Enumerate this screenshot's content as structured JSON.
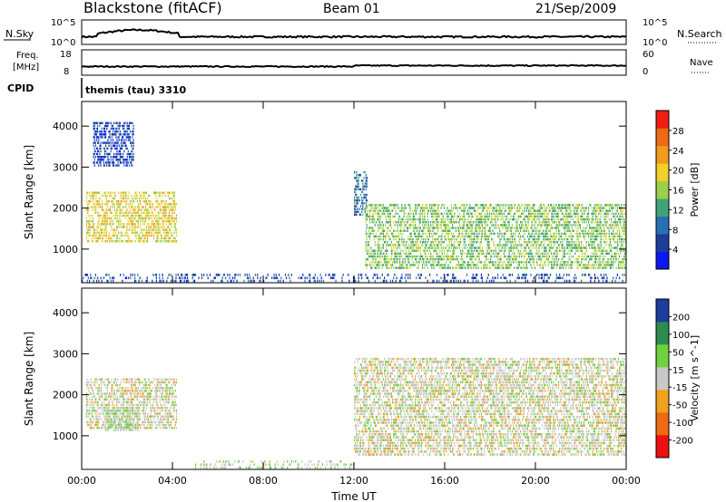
{
  "header": {
    "station": "Blackstone (fitACF)",
    "beam": "Beam 01",
    "date": "21/Sep/2009"
  },
  "top_panels": {
    "nsky": {
      "label": "N.Sky",
      "tick_hi": "10^5",
      "tick_lo": "10^0"
    },
    "nsearch": {
      "label": "N.Search",
      "tick_hi": "10^5",
      "tick_lo": "10^0"
    },
    "freq": {
      "label_1": "Freq.",
      "label_2": "[MHz]",
      "tick_hi": "18",
      "tick_lo": "8"
    },
    "nave": {
      "label": "Nave",
      "tick_hi": "60",
      "tick_lo": "0"
    },
    "cpid": {
      "label": "CPID",
      "program": "themis (tau) 3310"
    }
  },
  "colors": {
    "power": [
      "#0a19f0",
      "#1e3c9c",
      "#2a6fb3",
      "#3fa37a",
      "#9bd14a",
      "#f0d02a",
      "#f09a1e",
      "#ef6a14",
      "#ee1e14"
    ],
    "velocity": [
      "#ee1111",
      "#ef6a14",
      "#f0a21e",
      "#c8c8c8",
      "#6ed23c",
      "#2e8b4e",
      "#1e3c9c"
    ]
  },
  "chart_data": [
    {
      "type": "heatmap",
      "title": "Power",
      "ylabel": "Slant Range [km]",
      "xlabel": "",
      "ylim": [
        180,
        4600
      ],
      "x_ticks": [
        "00:00",
        "04:00",
        "08:00",
        "12:00",
        "16:00",
        "20:00",
        "00:00"
      ],
      "y_ticks": [
        "1000",
        "2000",
        "3000",
        "4000"
      ],
      "colorbar": {
        "label": "Power [dB]",
        "ticks": [
          "4",
          "8",
          "12",
          "16",
          "20",
          "24",
          "28"
        ],
        "range": [
          0,
          30
        ]
      },
      "features": [
        {
          "t_start": 0.2,
          "t_end": 4.2,
          "range_min": 1150,
          "range_max": 2400,
          "value": 18
        },
        {
          "t_start": 0.5,
          "t_end": 2.3,
          "range_min": 3000,
          "range_max": 4100,
          "value": 5
        },
        {
          "t_start": 12.0,
          "t_end": 12.6,
          "range_min": 1800,
          "range_max": 2900,
          "value": 8
        },
        {
          "t_start": 12.5,
          "t_end": 24.0,
          "range_min": 500,
          "range_max": 2100,
          "value": 14
        },
        {
          "t_start": 0.0,
          "t_end": 24.0,
          "range_min": 180,
          "range_max": 400,
          "value": 6
        }
      ]
    },
    {
      "type": "heatmap",
      "title": "Velocity",
      "ylabel": "Slant Range [km]",
      "xlabel": "Time UT",
      "ylim": [
        180,
        4600
      ],
      "x_ticks": [
        "00:00",
        "04:00",
        "08:00",
        "12:00",
        "16:00",
        "20:00",
        "00:00"
      ],
      "y_ticks": [
        "1000",
        "2000",
        "3000",
        "4000"
      ],
      "colorbar": {
        "label": "Velocity [m s^-1]",
        "ticks": [
          "-200",
          "-100",
          "-50",
          "-15",
          "15",
          "50",
          "100",
          "200"
        ],
        "range": [
          -250,
          250
        ]
      },
      "features": [
        {
          "t_start": 0.2,
          "t_end": 4.2,
          "range_min": 1150,
          "range_max": 2400,
          "value": 0
        },
        {
          "t_start": 1.0,
          "t_end": 2.5,
          "range_min": 1100,
          "range_max": 1700,
          "value": 30
        },
        {
          "t_start": 12.0,
          "t_end": 24.0,
          "range_min": 500,
          "range_max": 2900,
          "value": 0
        },
        {
          "t_start": 5.0,
          "t_end": 12.0,
          "range_min": 180,
          "range_max": 400,
          "value": 20
        }
      ]
    }
  ]
}
